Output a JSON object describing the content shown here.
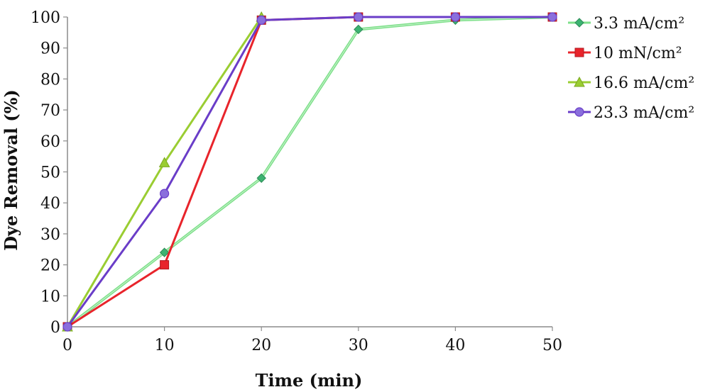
{
  "chart_data": {
    "type": "line",
    "title": "",
    "xlabel": "Time (min)",
    "ylabel": "Dye Removal (%)",
    "x": [
      0,
      10,
      20,
      30,
      40,
      50
    ],
    "xlim": [
      0,
      50
    ],
    "ylim": [
      0,
      100
    ],
    "x_ticks": [
      "0",
      "10",
      "20",
      "30",
      "40",
      "50"
    ],
    "y_ticks": [
      "0",
      "10",
      "20",
      "30",
      "40",
      "50",
      "60",
      "70",
      "80",
      "90",
      "100"
    ],
    "grid": false,
    "legend_position": "right",
    "series": [
      {
        "name": "3.3 mA/cm²",
        "color": "#7ee08a",
        "marker": "diamond",
        "values": [
          0,
          24,
          48,
          96,
          99,
          100
        ]
      },
      {
        "name": "10 mN/cm²",
        "color": "#e8242b",
        "marker": "square",
        "values": [
          0,
          20,
          99,
          100,
          100,
          100
        ]
      },
      {
        "name": "16.6 mA/cm²",
        "color": "#9acd32",
        "marker": "triangle",
        "values": [
          0,
          53,
          100,
          null,
          null,
          null
        ]
      },
      {
        "name": "23.3 mA/cm²",
        "color": "#6a3dc8",
        "marker": "circle",
        "values": [
          0,
          43,
          99,
          100,
          100,
          100
        ]
      }
    ]
  }
}
